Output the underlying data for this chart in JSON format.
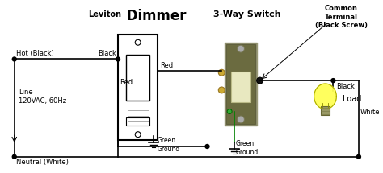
{
  "bg_color": "#ffffff",
  "title_leviton": "Leviton",
  "title_dimmer": " Dimmer",
  "title_3way": "3-Way Switch",
  "title_common": "Common\nTerminal\n(Black Screw)",
  "label_hot": "Hot (Black)",
  "label_line": "Line\n120VAC, 60Hz",
  "label_neutral": "Neutral (White)",
  "label_black_left": "Black",
  "label_red_right": "Red",
  "label_red_left": "Red",
  "label_green_ground1": "Green\nGround",
  "label_green_ground2": "Green\nGround",
  "label_black_right": "Black",
  "label_white": "White",
  "label_load": "Load",
  "wire_color_black": "#000000",
  "wire_color_red": "#cc0000",
  "wire_color_green": "#008000",
  "figsize": [
    4.74,
    2.15
  ],
  "dpi": 100
}
